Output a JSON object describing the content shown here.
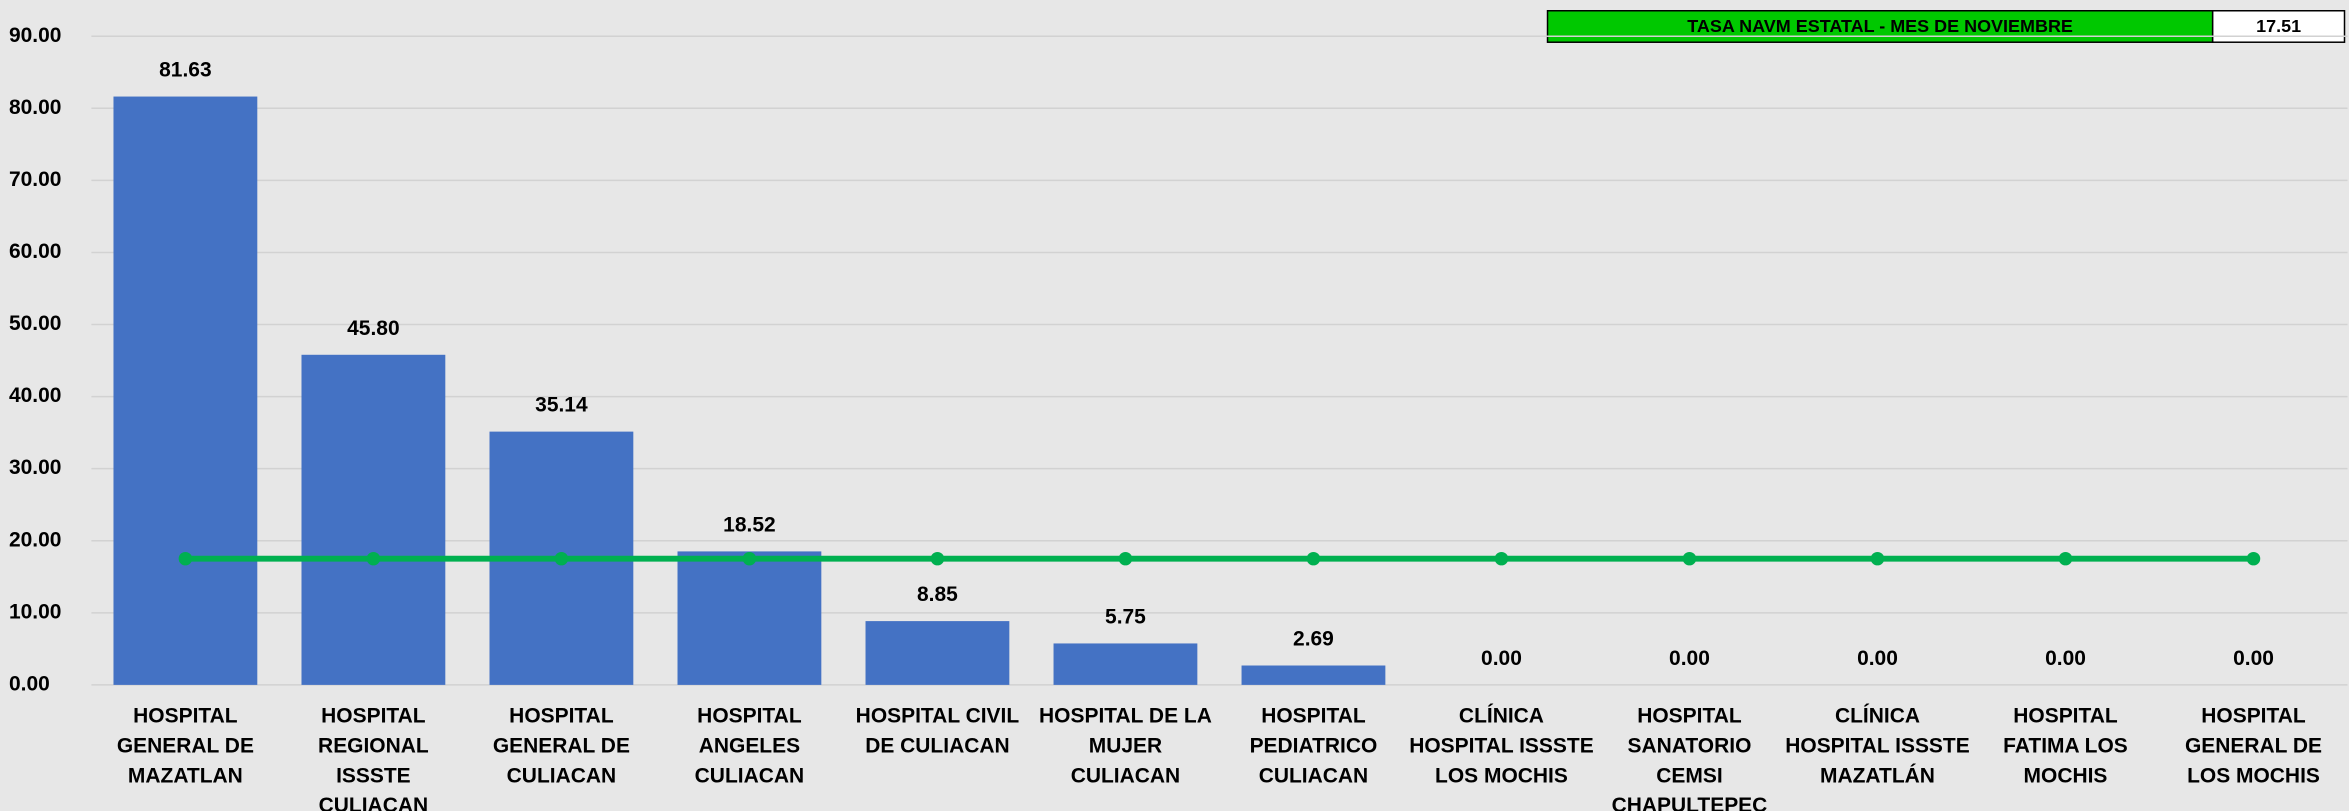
{
  "chart_data": {
    "type": "bar",
    "categories": [
      "HOSPITAL GENERAL DE MAZATLAN",
      "HOSPITAL REGIONAL ISSSTE CULIACAN",
      "HOSPITAL GENERAL DE CULIACAN",
      "HOSPITAL ANGELES CULIACAN",
      "HOSPITAL CIVIL DE CULIACAN",
      "HOSPITAL DE LA MUJER CULIACAN",
      "HOSPITAL PEDIATRICO CULIACAN",
      "CLÍNICA HOSPITAL ISSSTE LOS MOCHIS",
      "HOSPITAL SANATORIO CEMSI CHAPULTEPEC",
      "CLÍNICA HOSPITAL ISSSTE MAZATLÁN",
      "HOSPITAL FATIMA LOS MOCHIS",
      "HOSPITAL GENERAL DE LOS MOCHIS"
    ],
    "values": [
      81.63,
      45.8,
      35.14,
      18.52,
      8.85,
      5.75,
      2.69,
      0,
      0,
      0,
      0,
      0
    ],
    "value_labels": [
      "81.63",
      "45.80",
      "35.14",
      "18.52",
      "8.85",
      "5.75",
      "2.69",
      "0.00",
      "0.00",
      "0.00",
      "0.00",
      "0.00"
    ],
    "color": "#4472c4",
    "line_series": {
      "name": "TASA NAVM ESTATAL - MES DE NOVIEMBRE",
      "color": "#00b050",
      "legend_color": "#00c800",
      "values": [
        17.51,
        17.51,
        17.51,
        17.51,
        17.51,
        17.51,
        17.51,
        17.51,
        17.51,
        17.51,
        17.51,
        17.51
      ],
      "legend_value": 17.51
    },
    "ylim": [
      0,
      90
    ],
    "yticks": [
      {
        "value": 0,
        "label": "0.00"
      },
      {
        "value": 10,
        "label": "10.00"
      },
      {
        "value": 20,
        "label": "20.00"
      },
      {
        "value": 30,
        "label": "30.00"
      },
      {
        "value": 40,
        "label": "40.00"
      },
      {
        "value": 50,
        "label": "50.00"
      },
      {
        "value": 60,
        "label": "60.00"
      },
      {
        "value": 70,
        "label": "70.00"
      },
      {
        "value": 80,
        "label": "80.00"
      },
      {
        "value": 90,
        "label": "90.00"
      }
    ],
    "grid": true
  }
}
